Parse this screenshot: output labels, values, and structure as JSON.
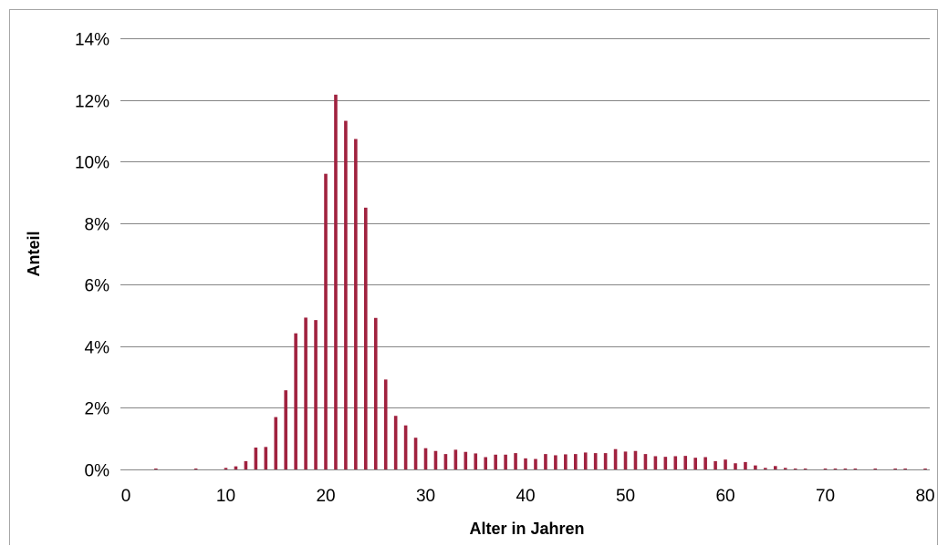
{
  "chart_data": {
    "type": "bar",
    "xlabel": "Alter in Jahren",
    "ylabel": "Anteil",
    "xlim": [
      0,
      81
    ],
    "ylim": [
      0,
      14
    ],
    "y_unit": "%",
    "y_ticks": [
      0,
      2,
      4,
      6,
      8,
      10,
      12,
      14
    ],
    "y_tick_labels": [
      "0%",
      "2%",
      "4%",
      "6%",
      "8%",
      "10%",
      "12%",
      "14%"
    ],
    "x_ticks": [
      0,
      10,
      20,
      30,
      40,
      50,
      60,
      70,
      80
    ],
    "x_tick_labels": [
      "0",
      "10",
      "20",
      "30",
      "40",
      "50",
      "60",
      "70",
      "80"
    ],
    "grid": true,
    "bar_color": "#a0223f",
    "x": [
      3,
      7,
      10,
      11,
      12,
      13,
      14,
      15,
      16,
      17,
      18,
      19,
      20,
      21,
      22,
      23,
      24,
      25,
      26,
      27,
      28,
      29,
      30,
      31,
      32,
      33,
      34,
      35,
      36,
      37,
      38,
      39,
      40,
      41,
      42,
      43,
      44,
      45,
      46,
      47,
      48,
      49,
      50,
      51,
      52,
      53,
      54,
      55,
      56,
      57,
      58,
      59,
      60,
      61,
      62,
      63,
      64,
      65,
      66,
      67,
      68,
      70,
      71,
      72,
      73,
      75,
      77,
      78,
      80
    ],
    "values": [
      0.02,
      0.02,
      0.05,
      0.1,
      0.27,
      0.71,
      0.73,
      1.7,
      2.57,
      4.42,
      4.93,
      4.85,
      9.6,
      12.17,
      11.32,
      10.73,
      8.5,
      4.92,
      2.92,
      1.74,
      1.43,
      1.03,
      0.69,
      0.6,
      0.5,
      0.64,
      0.57,
      0.52,
      0.4,
      0.48,
      0.48,
      0.53,
      0.36,
      0.34,
      0.5,
      0.46,
      0.49,
      0.5,
      0.55,
      0.53,
      0.53,
      0.66,
      0.58,
      0.6,
      0.5,
      0.43,
      0.41,
      0.43,
      0.44,
      0.38,
      0.4,
      0.27,
      0.32,
      0.2,
      0.24,
      0.13,
      0.05,
      0.11,
      0.05,
      0.02,
      0.02,
      0.01,
      0.01,
      0.02,
      0.01,
      0.01,
      0.01,
      0.01,
      0.01
    ]
  }
}
